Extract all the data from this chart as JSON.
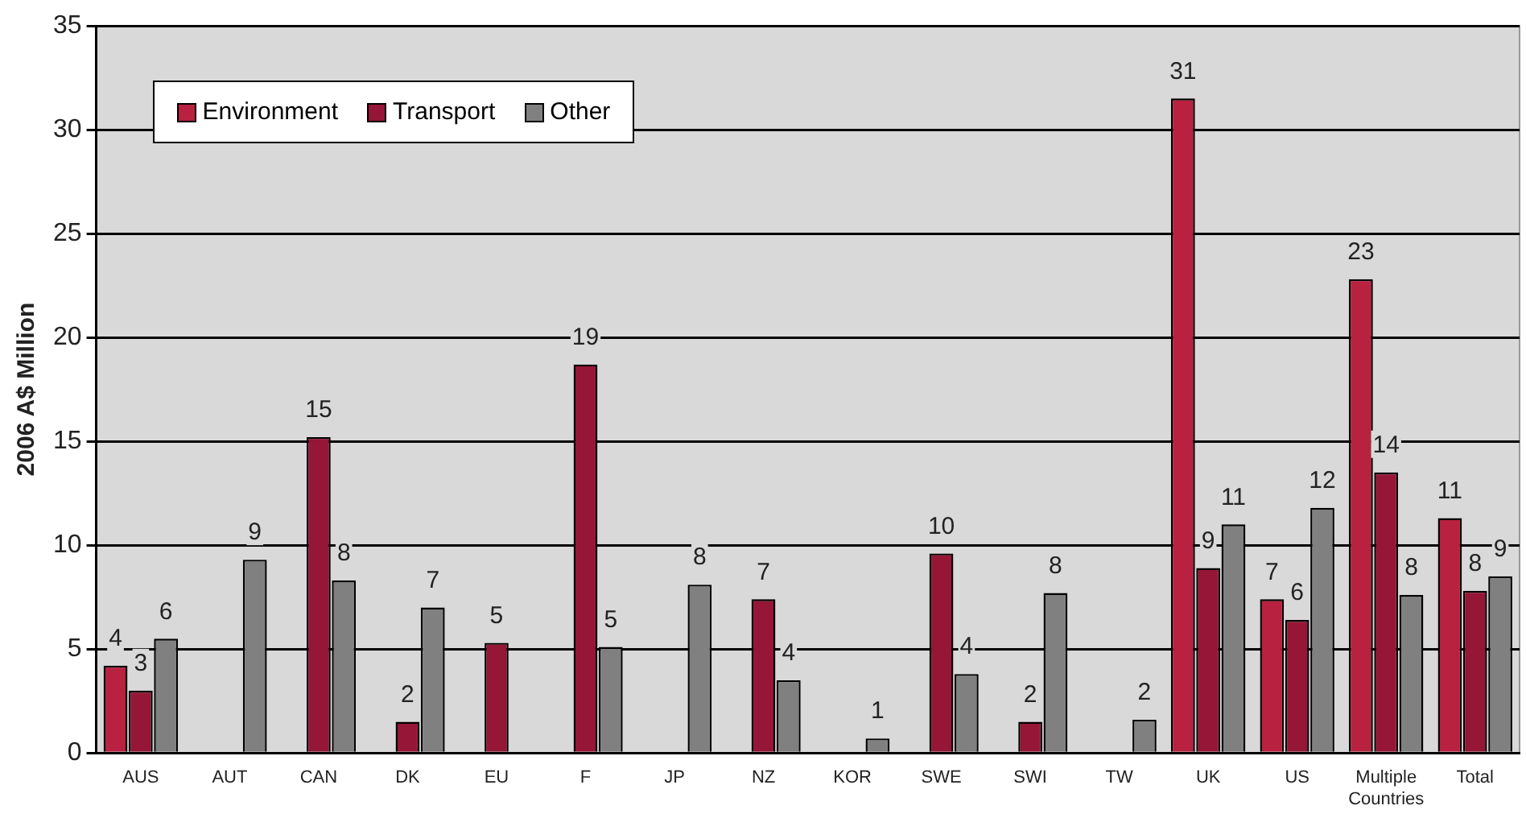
{
  "chart_data": {
    "type": "bar",
    "ylabel": "2006 A$ Million",
    "categories": [
      "AUS",
      "AUT",
      "CAN",
      "DK",
      "EU",
      "F",
      "JP",
      "NZ",
      "KOR",
      "SWE",
      "SWI",
      "TW",
      "UK",
      "US",
      "Multiple Countries",
      "Total"
    ],
    "series": [
      {
        "name": "Environment",
        "color": "#b8213f",
        "values": [
          4.2,
          null,
          null,
          null,
          null,
          null,
          null,
          null,
          null,
          null,
          null,
          null,
          31.5,
          7.4,
          22.8,
          11.3
        ],
        "value_labels": [
          "4",
          null,
          null,
          null,
          null,
          null,
          null,
          null,
          null,
          null,
          null,
          null,
          "31",
          "7",
          "23",
          "11"
        ]
      },
      {
        "name": "Transport",
        "color": "#951636",
        "values": [
          3.0,
          null,
          15.2,
          1.5,
          5.3,
          18.7,
          null,
          7.4,
          null,
          9.6,
          1.5,
          null,
          8.9,
          6.4,
          13.5,
          7.8
        ],
        "value_labels": [
          "3",
          null,
          "15",
          "2",
          "5",
          "19",
          null,
          "7",
          null,
          "10",
          "2",
          null,
          "9",
          "6",
          "14",
          "8"
        ]
      },
      {
        "name": "Other",
        "color": "#808080",
        "values": [
          5.5,
          9.3,
          8.3,
          7.0,
          null,
          5.1,
          8.1,
          3.5,
          0.7,
          3.8,
          7.7,
          1.6,
          11.0,
          11.8,
          7.6,
          8.5
        ],
        "value_labels": [
          "6",
          "9",
          "8",
          "7",
          null,
          "5",
          "8",
          "4",
          "1",
          "4",
          "8",
          "2",
          "11",
          "12",
          "8",
          "9"
        ]
      }
    ],
    "ylim": [
      0,
      35
    ],
    "yticks": [
      0,
      5,
      10,
      15,
      20,
      25,
      30,
      35
    ],
    "grid": "y",
    "legend": "top left"
  }
}
